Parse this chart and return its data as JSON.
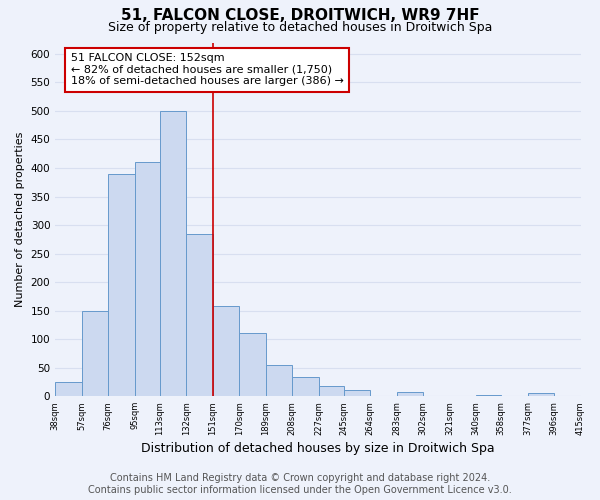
{
  "title": "51, FALCON CLOSE, DROITWICH, WR9 7HF",
  "subtitle": "Size of property relative to detached houses in Droitwich Spa",
  "xlabel": "Distribution of detached houses by size in Droitwich Spa",
  "ylabel": "Number of detached properties",
  "bar_edges": [
    38,
    57,
    76,
    95,
    113,
    132,
    151,
    170,
    189,
    208,
    227,
    245,
    264,
    283,
    302,
    321,
    340,
    358,
    377,
    396,
    415
  ],
  "bar_heights": [
    25,
    150,
    390,
    410,
    500,
    285,
    158,
    110,
    55,
    33,
    17,
    10,
    0,
    8,
    0,
    0,
    2,
    0,
    5,
    0
  ],
  "bar_color": "#ccd9f0",
  "bar_edge_color": "#6699cc",
  "vline_x": 151,
  "vline_color": "#cc0000",
  "ylim": [
    0,
    620
  ],
  "yticks": [
    0,
    50,
    100,
    150,
    200,
    250,
    300,
    350,
    400,
    450,
    500,
    550,
    600
  ],
  "xtick_labels": [
    "38sqm",
    "57sqm",
    "76sqm",
    "95sqm",
    "113sqm",
    "132sqm",
    "151sqm",
    "170sqm",
    "189sqm",
    "208sqm",
    "227sqm",
    "245sqm",
    "264sqm",
    "283sqm",
    "302sqm",
    "321sqm",
    "340sqm",
    "358sqm",
    "377sqm",
    "396sqm",
    "415sqm"
  ],
  "annotation_title": "51 FALCON CLOSE: 152sqm",
  "annotation_line1": "← 82% of detached houses are smaller (1,750)",
  "annotation_line2": "18% of semi-detached houses are larger (386) →",
  "annotation_box_color": "#ffffff",
  "annotation_box_edge": "#cc0000",
  "footer_line1": "Contains HM Land Registry data © Crown copyright and database right 2024.",
  "footer_line2": "Contains public sector information licensed under the Open Government Licence v3.0.",
  "background_color": "#eef2fb",
  "grid_color": "#d8dff0",
  "title_fontsize": 11,
  "subtitle_fontsize": 9,
  "xlabel_fontsize": 9,
  "ylabel_fontsize": 8,
  "footer_fontsize": 7
}
